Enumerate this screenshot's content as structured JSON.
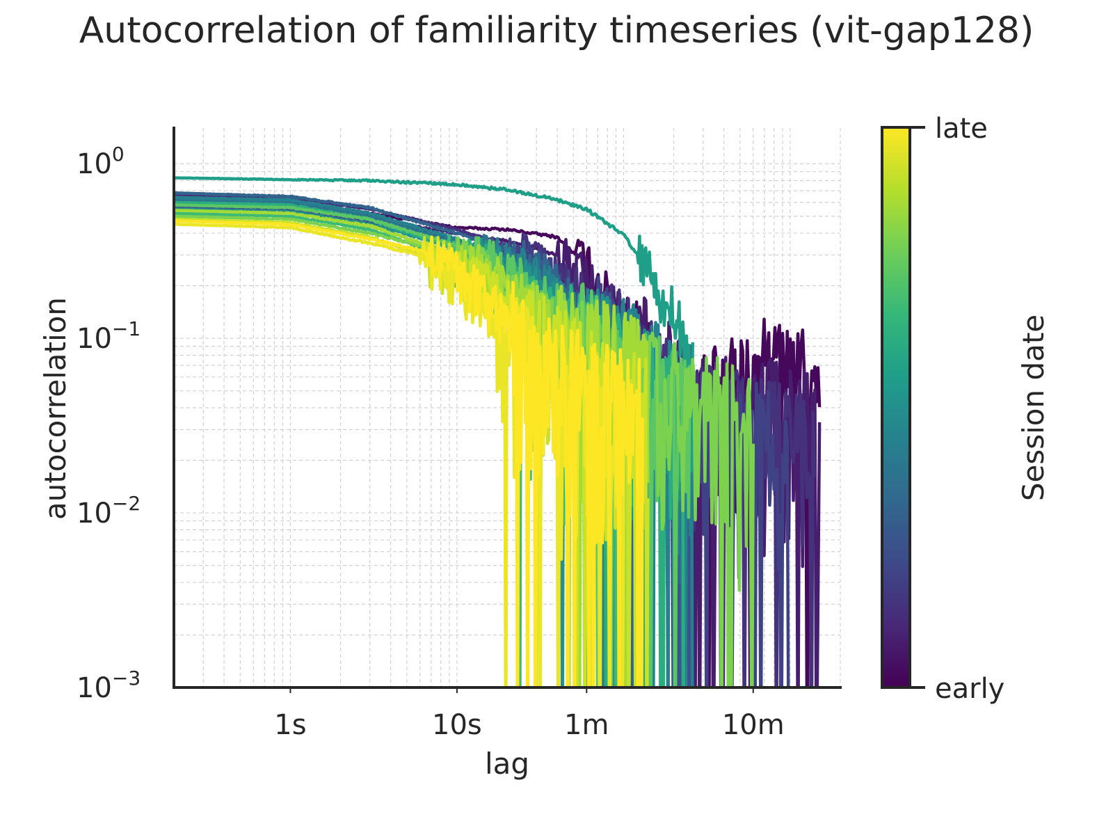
{
  "chart_data": {
    "type": "line",
    "title": "Autocorrelation of familiarity timeseries (vit-gap128)",
    "xlabel": "lag",
    "ylabel": "autocorrelation",
    "xscale": "log",
    "yscale": "log",
    "x_unit": "seconds",
    "xlim": [
      0.2,
      2000
    ],
    "ylim": [
      0.001,
      1.6
    ],
    "x_ticks": [
      {
        "value": 1,
        "label": "1s"
      },
      {
        "value": 10,
        "label": "10s"
      },
      {
        "value": 60,
        "label": "1m"
      },
      {
        "value": 600,
        "label": "10m"
      }
    ],
    "y_ticks": [
      {
        "value": 1,
        "label": "10",
        "exp": "0"
      },
      {
        "value": 0.1,
        "label": "10",
        "exp": "−1"
      },
      {
        "value": 0.01,
        "label": "10",
        "exp": "−2"
      },
      {
        "value": 0.001,
        "label": "10",
        "exp": "−3"
      }
    ],
    "grid": true,
    "colorbar": {
      "label": "Session date",
      "top_label": "late",
      "bottom_label": "early",
      "colormap": "viridis",
      "colors": [
        "#440154",
        "#482878",
        "#3e4989",
        "#31688e",
        "#26828e",
        "#1f9e89",
        "#35b779",
        "#6ece58",
        "#b5de2b",
        "#fde725"
      ]
    },
    "series": [
      {
        "c": 0.02,
        "points": [
          [
            0.2,
            0.62
          ],
          [
            1,
            0.6
          ],
          [
            3,
            0.52
          ],
          [
            10,
            0.43
          ],
          [
            20,
            0.42
          ],
          [
            40,
            0.38
          ],
          [
            60,
            0.26
          ],
          [
            100,
            0.13
          ],
          [
            150,
            0.06
          ],
          [
            250,
            0.05
          ],
          [
            400,
            0.05
          ],
          [
            700,
            0.07
          ],
          [
            1200,
            0.06
          ],
          [
            1500,
            0.04
          ]
        ]
      },
      {
        "c": 0.08,
        "points": [
          [
            0.2,
            0.58
          ],
          [
            1,
            0.55
          ],
          [
            3,
            0.48
          ],
          [
            10,
            0.4
          ],
          [
            20,
            0.36
          ],
          [
            40,
            0.3
          ],
          [
            60,
            0.22
          ],
          [
            100,
            0.13
          ],
          [
            150,
            0.08
          ],
          [
            250,
            0.05
          ],
          [
            500,
            0.04
          ],
          [
            1000,
            0.04
          ],
          [
            1500,
            0.03
          ]
        ]
      },
      {
        "c": 0.14,
        "points": [
          [
            0.2,
            0.66
          ],
          [
            1,
            0.63
          ],
          [
            3,
            0.55
          ],
          [
            10,
            0.42
          ],
          [
            20,
            0.34
          ],
          [
            40,
            0.23
          ],
          [
            60,
            0.17
          ],
          [
            100,
            0.1
          ],
          [
            160,
            0.06
          ],
          [
            250,
            0.04
          ],
          [
            500,
            0.035
          ],
          [
            900,
            0.03
          ],
          [
            1400,
            0.025
          ]
        ]
      },
      {
        "c": 0.2,
        "points": [
          [
            0.2,
            0.6
          ],
          [
            1,
            0.58
          ],
          [
            3,
            0.5
          ],
          [
            10,
            0.36
          ],
          [
            20,
            0.3
          ],
          [
            40,
            0.22
          ],
          [
            60,
            0.14
          ],
          [
            100,
            0.08
          ],
          [
            150,
            0.05
          ],
          [
            250,
            0.04
          ],
          [
            400,
            0.03
          ],
          [
            700,
            0.03
          ],
          [
            1000,
            0.025
          ]
        ]
      },
      {
        "c": 0.26,
        "points": [
          [
            0.2,
            0.56
          ],
          [
            1,
            0.54
          ],
          [
            3,
            0.46
          ],
          [
            10,
            0.34
          ],
          [
            20,
            0.27
          ],
          [
            40,
            0.19
          ],
          [
            60,
            0.13
          ],
          [
            100,
            0.08
          ],
          [
            160,
            0.05
          ],
          [
            260,
            0.03
          ]
        ]
      },
      {
        "c": 0.32,
        "points": [
          [
            0.2,
            0.68
          ],
          [
            1,
            0.65
          ],
          [
            3,
            0.56
          ],
          [
            10,
            0.4
          ],
          [
            20,
            0.32
          ],
          [
            40,
            0.2
          ],
          [
            60,
            0.12
          ],
          [
            100,
            0.07
          ],
          [
            150,
            0.05
          ],
          [
            220,
            0.03
          ]
        ]
      },
      {
        "c": 0.38,
        "points": [
          [
            0.2,
            0.62
          ],
          [
            1,
            0.6
          ],
          [
            3,
            0.5
          ],
          [
            10,
            0.35
          ],
          [
            20,
            0.25
          ],
          [
            40,
            0.14
          ],
          [
            60,
            0.09
          ],
          [
            100,
            0.06
          ],
          [
            150,
            0.04
          ]
        ]
      },
      {
        "c": 0.44,
        "points": [
          [
            0.2,
            0.64
          ],
          [
            1,
            0.62
          ],
          [
            3,
            0.52
          ],
          [
            10,
            0.37
          ],
          [
            20,
            0.28
          ],
          [
            40,
            0.18
          ],
          [
            60,
            0.12
          ],
          [
            100,
            0.09
          ],
          [
            160,
            0.07
          ],
          [
            260,
            0.05
          ]
        ]
      },
      {
        "c": 0.5,
        "points": [
          [
            0.2,
            0.55
          ],
          [
            1,
            0.53
          ],
          [
            3,
            0.45
          ],
          [
            10,
            0.33
          ],
          [
            20,
            0.24
          ],
          [
            40,
            0.16
          ],
          [
            60,
            0.11
          ],
          [
            100,
            0.08
          ],
          [
            150,
            0.06
          ],
          [
            230,
            0.04
          ]
        ]
      },
      {
        "c": 0.56,
        "points": [
          [
            0.2,
            0.83
          ],
          [
            1,
            0.81
          ],
          [
            3,
            0.8
          ],
          [
            10,
            0.76
          ],
          [
            20,
            0.71
          ],
          [
            40,
            0.62
          ],
          [
            60,
            0.55
          ],
          [
            100,
            0.39
          ],
          [
            150,
            0.22
          ],
          [
            200,
            0.1
          ],
          [
            260,
            0.06
          ]
        ]
      },
      {
        "c": 0.62,
        "points": [
          [
            0.2,
            0.6
          ],
          [
            1,
            0.58
          ],
          [
            3,
            0.48
          ],
          [
            10,
            0.32
          ],
          [
            20,
            0.22
          ],
          [
            40,
            0.14
          ],
          [
            60,
            0.1
          ],
          [
            100,
            0.07
          ],
          [
            150,
            0.05
          ],
          [
            230,
            0.04
          ]
        ]
      },
      {
        "c": 0.68,
        "points": [
          [
            0.2,
            0.52
          ],
          [
            1,
            0.5
          ],
          [
            3,
            0.42
          ],
          [
            10,
            0.28
          ],
          [
            20,
            0.18
          ],
          [
            30,
            0.1
          ],
          [
            40,
            0.07
          ],
          [
            60,
            0.05
          ],
          [
            100,
            0.04
          ]
        ]
      },
      {
        "c": 0.74,
        "points": [
          [
            0.2,
            0.58
          ],
          [
            1,
            0.56
          ],
          [
            3,
            0.48
          ],
          [
            10,
            0.34
          ],
          [
            20,
            0.24
          ],
          [
            40,
            0.15
          ],
          [
            60,
            0.11
          ],
          [
            100,
            0.08
          ],
          [
            160,
            0.06
          ],
          [
            250,
            0.04
          ]
        ]
      },
      {
        "c": 0.8,
        "points": [
          [
            0.2,
            0.5
          ],
          [
            1,
            0.48
          ],
          [
            3,
            0.4
          ],
          [
            10,
            0.3
          ],
          [
            20,
            0.2
          ],
          [
            40,
            0.12
          ],
          [
            60,
            0.09
          ],
          [
            100,
            0.07
          ],
          [
            200,
            0.05
          ],
          [
            400,
            0.04
          ],
          [
            600,
            0.03
          ]
        ]
      },
      {
        "c": 0.86,
        "points": [
          [
            0.2,
            0.54
          ],
          [
            1,
            0.52
          ],
          [
            3,
            0.44
          ],
          [
            10,
            0.3
          ],
          [
            20,
            0.2
          ],
          [
            40,
            0.12
          ],
          [
            60,
            0.09
          ],
          [
            100,
            0.08
          ],
          [
            140,
            0.06
          ]
        ]
      },
      {
        "c": 0.92,
        "points": [
          [
            0.2,
            0.48
          ],
          [
            1,
            0.46
          ],
          [
            3,
            0.38
          ],
          [
            10,
            0.26
          ],
          [
            20,
            0.16
          ],
          [
            30,
            0.1
          ],
          [
            50,
            0.07
          ],
          [
            80,
            0.05
          ],
          [
            140,
            0.04
          ]
        ]
      },
      {
        "c": 0.97,
        "points": [
          [
            0.2,
            0.45
          ],
          [
            1,
            0.43
          ],
          [
            3,
            0.35
          ],
          [
            6,
            0.3
          ],
          [
            10,
            0.22
          ],
          [
            15,
            0.14
          ],
          [
            20,
            0.1
          ],
          [
            30,
            0.07
          ],
          [
            40,
            0.05
          ],
          [
            60,
            0.04
          ],
          [
            100,
            0.03
          ]
        ]
      },
      {
        "c": 1.0,
        "points": [
          [
            0.2,
            0.47
          ],
          [
            1,
            0.45
          ],
          [
            3,
            0.37
          ],
          [
            6,
            0.32
          ],
          [
            10,
            0.24
          ],
          [
            20,
            0.13
          ],
          [
            30,
            0.08
          ],
          [
            50,
            0.06
          ],
          [
            80,
            0.05
          ],
          [
            130,
            0.04
          ]
        ]
      }
    ]
  }
}
